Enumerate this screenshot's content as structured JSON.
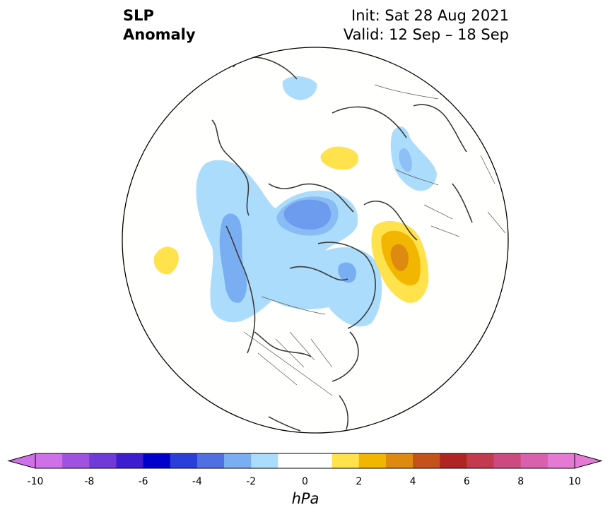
{
  "title": {
    "variable_line1": "SLP",
    "variable_line2": "Anomaly",
    "init": "Init: Sat 28 Aug 2021",
    "valid": "Valid: 12 Sep – 18 Sep"
  },
  "map": {
    "projection": "north-polar-stereographic",
    "region": "North America / Arctic / North Atlantic",
    "anomaly_features": [
      {
        "label": "negative-anomaly-arctic-canada",
        "sign": "negative",
        "max_abs_hpa": 5
      },
      {
        "label": "negative-anomaly-alaska-gulf",
        "sign": "negative",
        "max_abs_hpa": 3
      },
      {
        "label": "negative-anomaly-greenland-west",
        "sign": "negative",
        "max_abs_hpa": 3
      },
      {
        "label": "negative-anomaly-east-siberia",
        "sign": "negative",
        "max_abs_hpa": 2
      },
      {
        "label": "negative-anomaly-scandinavia",
        "sign": "negative",
        "max_abs_hpa": 2
      },
      {
        "label": "positive-anomaly-north-atlantic",
        "sign": "positive",
        "max_abs_hpa": 4
      },
      {
        "label": "positive-anomaly-central-siberia",
        "sign": "positive",
        "max_abs_hpa": 2
      },
      {
        "label": "positive-anomaly-north-pacific",
        "sign": "positive",
        "max_abs_hpa": 2
      }
    ]
  },
  "colorbar": {
    "unit": "hPa",
    "levels": [
      -10,
      -9,
      -8,
      -7,
      -6,
      -5,
      -4,
      -3,
      -2,
      -1,
      1,
      2,
      3,
      4,
      5,
      6,
      7,
      8,
      9,
      10
    ],
    "colors": [
      "#d070e8",
      "#9f52e0",
      "#6f3ad8",
      "#3e1ccf",
      "#0000cc",
      "#2a3fd9",
      "#4f6fe3",
      "#7aaef2",
      "#acdcfb",
      "#ffffff",
      "#ffe24c",
      "#f2b600",
      "#de8a10",
      "#c5521a",
      "#b12424",
      "#c33a4e",
      "#cc4a80",
      "#d860ad",
      "#e47ad4"
    ],
    "extend_min_color": "#d070e8",
    "extend_max_color": "#e47ad4",
    "tick_labels": [
      "-10",
      "-8",
      "-6",
      "-4",
      "-2",
      "0",
      "2",
      "4",
      "6",
      "8",
      "10"
    ]
  }
}
